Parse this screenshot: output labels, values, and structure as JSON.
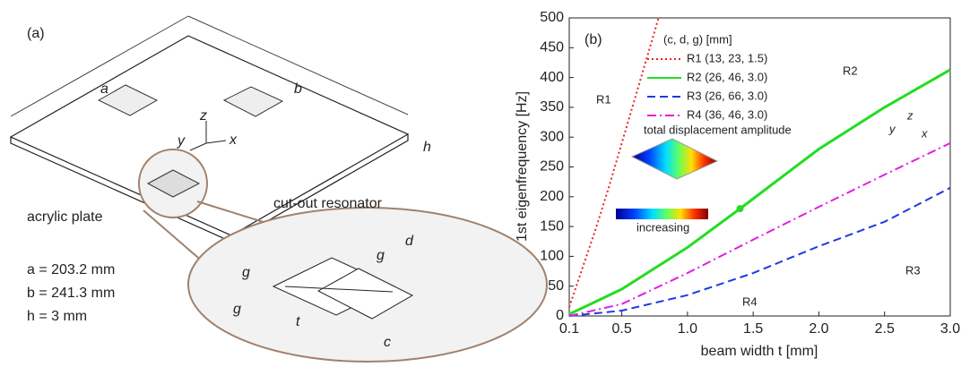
{
  "diagram": {
    "label": "(a)",
    "dim_a": "a",
    "dim_b": "b",
    "dim_h": "h",
    "axis_x": "x",
    "axis_y": "y",
    "axis_z": "z",
    "plate": "acrylic plate",
    "zoom_title": "cut-out resonator",
    "dim_d": "d",
    "dim_g1": "g",
    "dim_g2": "g",
    "dim_g3": "g",
    "dim_t": "t",
    "dim_c": "c",
    "params": [
      "a = 203.2 mm",
      "b = 241.3 mm",
      "h = 3 mm"
    ]
  },
  "chart_data": {
    "type": "line",
    "label": "(b)",
    "x_label": "beam width t [mm]",
    "y_label": "1st eigenfrequency [Hz]",
    "legend_title": "(c, d, g) [mm]",
    "legend": "upper-left",
    "xlim": [
      0.1,
      3.0
    ],
    "ylim": [
      0,
      500
    ],
    "xticks": [
      0.1,
      0.5,
      {
        "value": 1,
        "label": "1.0"
      },
      1.5,
      {
        "value": 2,
        "label": "2.0"
      },
      2.5,
      {
        "value": 3,
        "label": "3.0"
      }
    ],
    "yticks": [
      0,
      50,
      100,
      150,
      200,
      250,
      300,
      350,
      400,
      450,
      500
    ],
    "series": [
      {
        "name": "R1 (13, 23, 1.5)",
        "color": "#e8261c",
        "style": "dotted",
        "x": [
          0.1,
          0.2,
          0.3,
          0.4,
          0.5,
          0.6,
          0.7,
          0.78
        ],
        "values": [
          15,
          80,
          145,
          215,
          290,
          365,
          440,
          500
        ]
      },
      {
        "name": "R2 (26, 46, 3.0)",
        "color": "#22dd22",
        "style": "solid",
        "x": [
          0.1,
          0.5,
          1.0,
          1.4,
          2.0,
          2.5,
          3.0
        ],
        "values": [
          3,
          45,
          115,
          180,
          280,
          350,
          413
        ]
      },
      {
        "name": "R3 (26, 66, 3.0)",
        "color": "#1c3ce0",
        "style": "dashed",
        "x": [
          0.1,
          0.5,
          1.0,
          1.5,
          2.0,
          2.5,
          3.0
        ],
        "values": [
          0,
          9,
          35,
          72,
          117,
          158,
          215
        ]
      },
      {
        "name": "R4 (36, 46, 3.0)",
        "color": "#e020e0",
        "style": "dashdot",
        "x": [
          0.1,
          0.5,
          1.0,
          1.5,
          2.0,
          2.5,
          3.0
        ],
        "values": [
          0,
          20,
          72,
          128,
          183,
          237,
          290
        ]
      }
    ],
    "marker": {
      "series": 1,
      "index": 3
    },
    "annotations": [
      "R1",
      "R2",
      "R3",
      "R4",
      "total displacement amplitude",
      "increasing",
      "x",
      "y",
      "z"
    ]
  }
}
